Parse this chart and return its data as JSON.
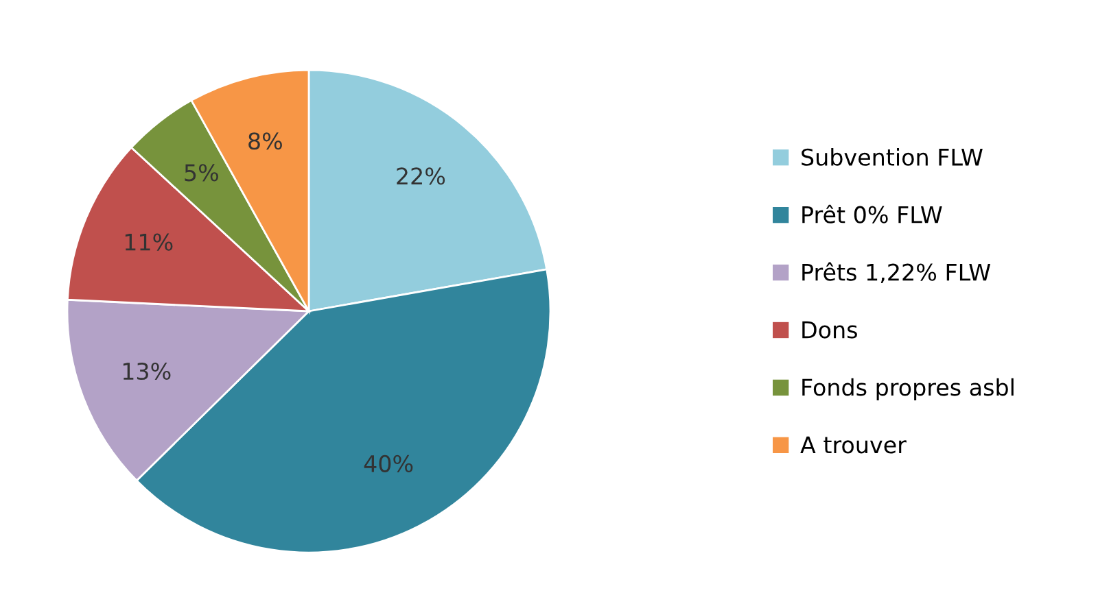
{
  "chart_data": {
    "type": "pie",
    "categories": [
      "Subvention FLW",
      "Prêt 0% FLW",
      "Prêts 1,22% FLW",
      "Dons",
      "Fonds propres asbl",
      "A trouver"
    ],
    "values": [
      22,
      40,
      13,
      11,
      5,
      8
    ],
    "value_labels": [
      "22%",
      "40%",
      "13%",
      "11%",
      "5%",
      "8%"
    ],
    "colors": [
      "#93cddd",
      "#31859c",
      "#b3a2c7",
      "#c0504d",
      "#77933c",
      "#f79646"
    ],
    "legend": "right"
  }
}
